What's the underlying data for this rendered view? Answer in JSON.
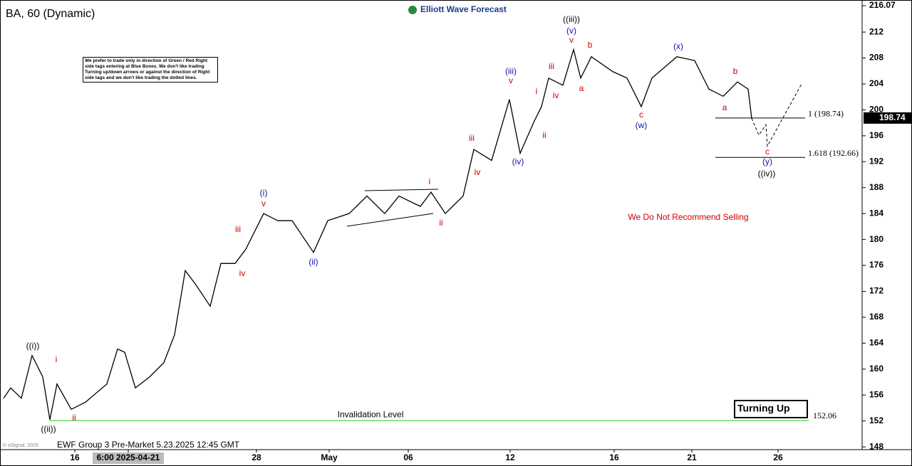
{
  "chart_data": {
    "type": "line",
    "title": "BA, 60 (Dynamic)",
    "brand": "Elliott Wave Forecast",
    "note": "We prefer to trade only in direction of Green / Red Right side tags entering at Blue Boxes. We don't like trading Turning up/down arrows or against the direction of Right side tags and we don't like trading the dotted lines.",
    "footer": "EWF Group 3 Pre-Market 5.23.2025 12:45 GMT",
    "copyright": "© eSignal, 2025",
    "warning": "We Do Not Recommend Selling",
    "signal": "Turning Up",
    "color": "#000000",
    "x": [
      0.5,
      1.5,
      3,
      4.5,
      6,
      7,
      8,
      10,
      12,
      15,
      16.5,
      17.5,
      19,
      21,
      23,
      24.5,
      26,
      27.5,
      29.5,
      31,
      33,
      34.5,
      37,
      39,
      41,
      44,
      46,
      49,
      51.5,
      54,
      56,
      59,
      60.5,
      62.5,
      65,
      66.5,
      69,
      71.5,
      73,
      75,
      76,
      77,
      79,
      80.5,
      81.5,
      83,
      86,
      88,
      90,
      91.5,
      95,
      97.5,
      99.5,
      101.5,
      103.5,
      105,
      105.5
    ],
    "values": [
      155.5,
      157.1,
      155.5,
      162.1,
      158.8,
      152.2,
      157.7,
      153.8,
      154.9,
      157.7,
      163.1,
      162.6,
      157.1,
      158.8,
      161,
      165.3,
      175.2,
      173,
      169.7,
      176.3,
      176.3,
      178.5,
      184,
      182.9,
      182.9,
      178,
      182.9,
      184,
      186.7,
      184,
      186.7,
      185.1,
      187.3,
      184,
      186.7,
      193.9,
      192.2,
      201.6,
      193.3,
      198.3,
      200.5,
      204.9,
      203.8,
      209.3,
      204.9,
      208.2,
      205.9,
      204.9,
      200.5,
      204.9,
      208.2,
      207.6,
      203.2,
      202.1,
      204.3,
      203.2,
      198.7
    ],
    "projection": {
      "x": [
        105.5,
        106.5,
        107.5,
        107.7,
        112.5
      ],
      "values": [
        198.7,
        196.1,
        197.7,
        194.4,
        204
      ]
    },
    "xlim": [
      0,
      121
    ],
    "xticks": [
      {
        "value": 10.5,
        "label": "16"
      },
      {
        "value": 18,
        "label": "6:00 2025-04-21"
      },
      {
        "value": 36,
        "label": "28"
      },
      {
        "value": 46.2,
        "label": "May"
      },
      {
        "value": 57.3,
        "label": "06"
      },
      {
        "value": 71.6,
        "label": "12"
      },
      {
        "value": 86.2,
        "label": "16"
      },
      {
        "value": 97.1,
        "label": "21"
      },
      {
        "value": 109.2,
        "label": "26"
      }
    ],
    "ylim": [
      145.6,
      216.07
    ],
    "yticks": [
      148,
      152,
      156,
      160,
      164,
      168,
      172,
      176,
      180,
      184,
      188,
      192,
      196,
      200,
      204,
      208,
      212,
      216.07
    ],
    "last_price": 198.74,
    "levels": [
      {
        "label": "1 (198.74)",
        "value": 198.74
      },
      {
        "label": "1.618 (192.66)",
        "value": 192.66
      }
    ],
    "invalidation": {
      "label": "Invalidation Level",
      "value": 152.06
    },
    "wave_labels": [
      {
        "text": "((i))",
        "color": "#000000"
      },
      {
        "text": "((ii))",
        "color": "#000000"
      },
      {
        "text": "i",
        "color": "#cc0000"
      },
      {
        "text": "ii",
        "color": "#cc0000"
      },
      {
        "text": "iii",
        "color": "#cc0000"
      },
      {
        "text": "iv",
        "color": "#cc0000"
      },
      {
        "text": "(i)",
        "color": "#1010b0"
      },
      {
        "text": "v",
        "color": "#cc0000"
      },
      {
        "text": "(ii)",
        "color": "#1010b0"
      },
      {
        "text": "i",
        "color": "#cc0000"
      },
      {
        "text": "ii",
        "color": "#cc0000"
      },
      {
        "text": "iii",
        "color": "#cc0000"
      },
      {
        "text": "iv",
        "color": "#cc0000"
      },
      {
        "text": "(iii)",
        "color": "#1010b0"
      },
      {
        "text": "v",
        "color": "#cc0000"
      },
      {
        "text": "(iv)",
        "color": "#1010b0"
      },
      {
        "text": "i",
        "color": "#cc0000"
      },
      {
        "text": "ii",
        "color": "#cc0000"
      },
      {
        "text": "iii",
        "color": "#cc0000"
      },
      {
        "text": "iv",
        "color": "#cc0000"
      },
      {
        "text": "((iii))",
        "color": "#000000"
      },
      {
        "text": "(v)",
        "color": "#1010b0"
      },
      {
        "text": "v",
        "color": "#cc0000"
      },
      {
        "text": "b",
        "color": "#cc0000"
      },
      {
        "text": "a",
        "color": "#cc0000"
      },
      {
        "text": "c",
        "color": "#cc0000"
      },
      {
        "text": "(w)",
        "color": "#1010b0"
      },
      {
        "text": "(x)",
        "color": "#1010b0"
      },
      {
        "text": "b",
        "color": "#cc0000"
      },
      {
        "text": "a",
        "color": "#cc0000"
      },
      {
        "text": "c",
        "color": "#cc0000"
      },
      {
        "text": "(y)",
        "color": "#1010b0"
      },
      {
        "text": "((iv))",
        "color": "#000000"
      }
    ]
  }
}
